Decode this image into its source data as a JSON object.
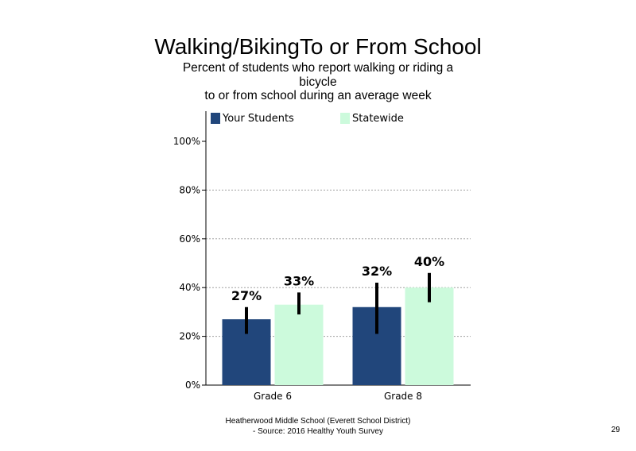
{
  "title": "Walking/BikingTo or From School",
  "subtitle_lines": [
    "Percent of students who report walking or riding a",
    "bicycle",
    "to or from school during an average week"
  ],
  "footer": {
    "line1": "Heatherwood Middle School (Everett School District)",
    "line2": "- Source: 2016 Healthy  Youth Survey"
  },
  "page_number": "29",
  "colors": {
    "your_students": "#21467b",
    "statewide": "#ccfadc",
    "error_bar": "#000000",
    "grid": "#a0a0a0"
  },
  "chart_data": {
    "type": "bar",
    "categories": [
      "Grade 6",
      "Grade 8"
    ],
    "series": [
      {
        "name": "Your Students",
        "values": [
          27,
          32
        ],
        "labels": [
          "27%",
          "32%"
        ],
        "ci_low": [
          21,
          21
        ],
        "ci_high": [
          32,
          42
        ]
      },
      {
        "name": "Statewide",
        "values": [
          33,
          40
        ],
        "labels": [
          "33%",
          "40%"
        ],
        "ci_low": [
          29,
          34
        ],
        "ci_high": [
          38,
          46
        ]
      }
    ],
    "ylim": [
      0,
      100
    ],
    "yticks": [
      0,
      20,
      40,
      60,
      80,
      100
    ],
    "ytick_labels": [
      "0%",
      "20%",
      "40%",
      "60%",
      "80%",
      "100%"
    ],
    "grid": true,
    "legend_position": "top"
  }
}
